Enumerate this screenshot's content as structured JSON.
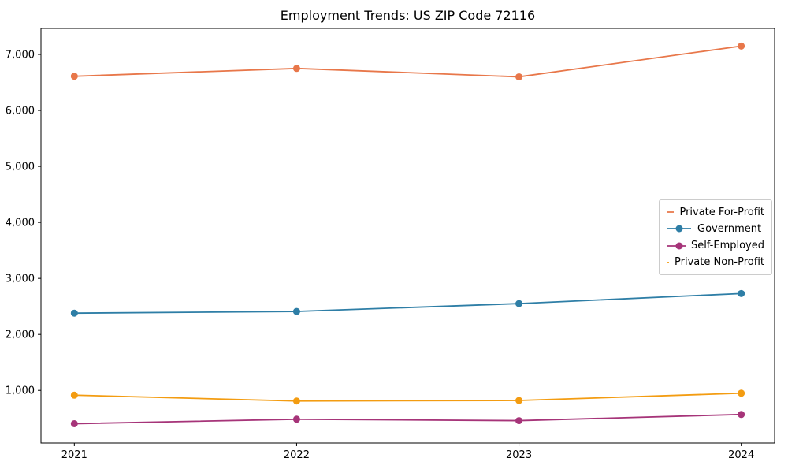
{
  "chart": {
    "title": "Employment Trends: US ZIP Code 72116"
  },
  "chart_data": {
    "type": "line",
    "title": "Employment Trends: US ZIP Code 72116",
    "xlabel": "",
    "ylabel": "",
    "x": [
      2021,
      2022,
      2023,
      2024
    ],
    "xtick_labels": [
      "2021",
      "2022",
      "2023",
      "2024"
    ],
    "yticks": [
      1000,
      2000,
      3000,
      4000,
      5000,
      6000,
      7000
    ],
    "ytick_labels": [
      "1,000",
      "2,000",
      "3,000",
      "4,000",
      "5,000",
      "6,000",
      "7,000"
    ],
    "xlim": [
      2020.85,
      2024.15
    ],
    "ylim": [
      60,
      7465
    ],
    "grid": false,
    "marker": "o",
    "legend_position": "center right",
    "series": [
      {
        "name": "Private For-Profit",
        "color": "#E8774A",
        "values": [
          6610,
          6750,
          6600,
          7150
        ]
      },
      {
        "name": "Government",
        "color": "#2E7EA6",
        "values": [
          2380,
          2410,
          2550,
          2730
        ]
      },
      {
        "name": "Self-Employed",
        "color": "#A63479",
        "values": [
          405,
          485,
          460,
          570
        ]
      },
      {
        "name": "Private Non-Profit",
        "color": "#F39C11",
        "values": [
          915,
          810,
          820,
          950
        ]
      }
    ]
  }
}
